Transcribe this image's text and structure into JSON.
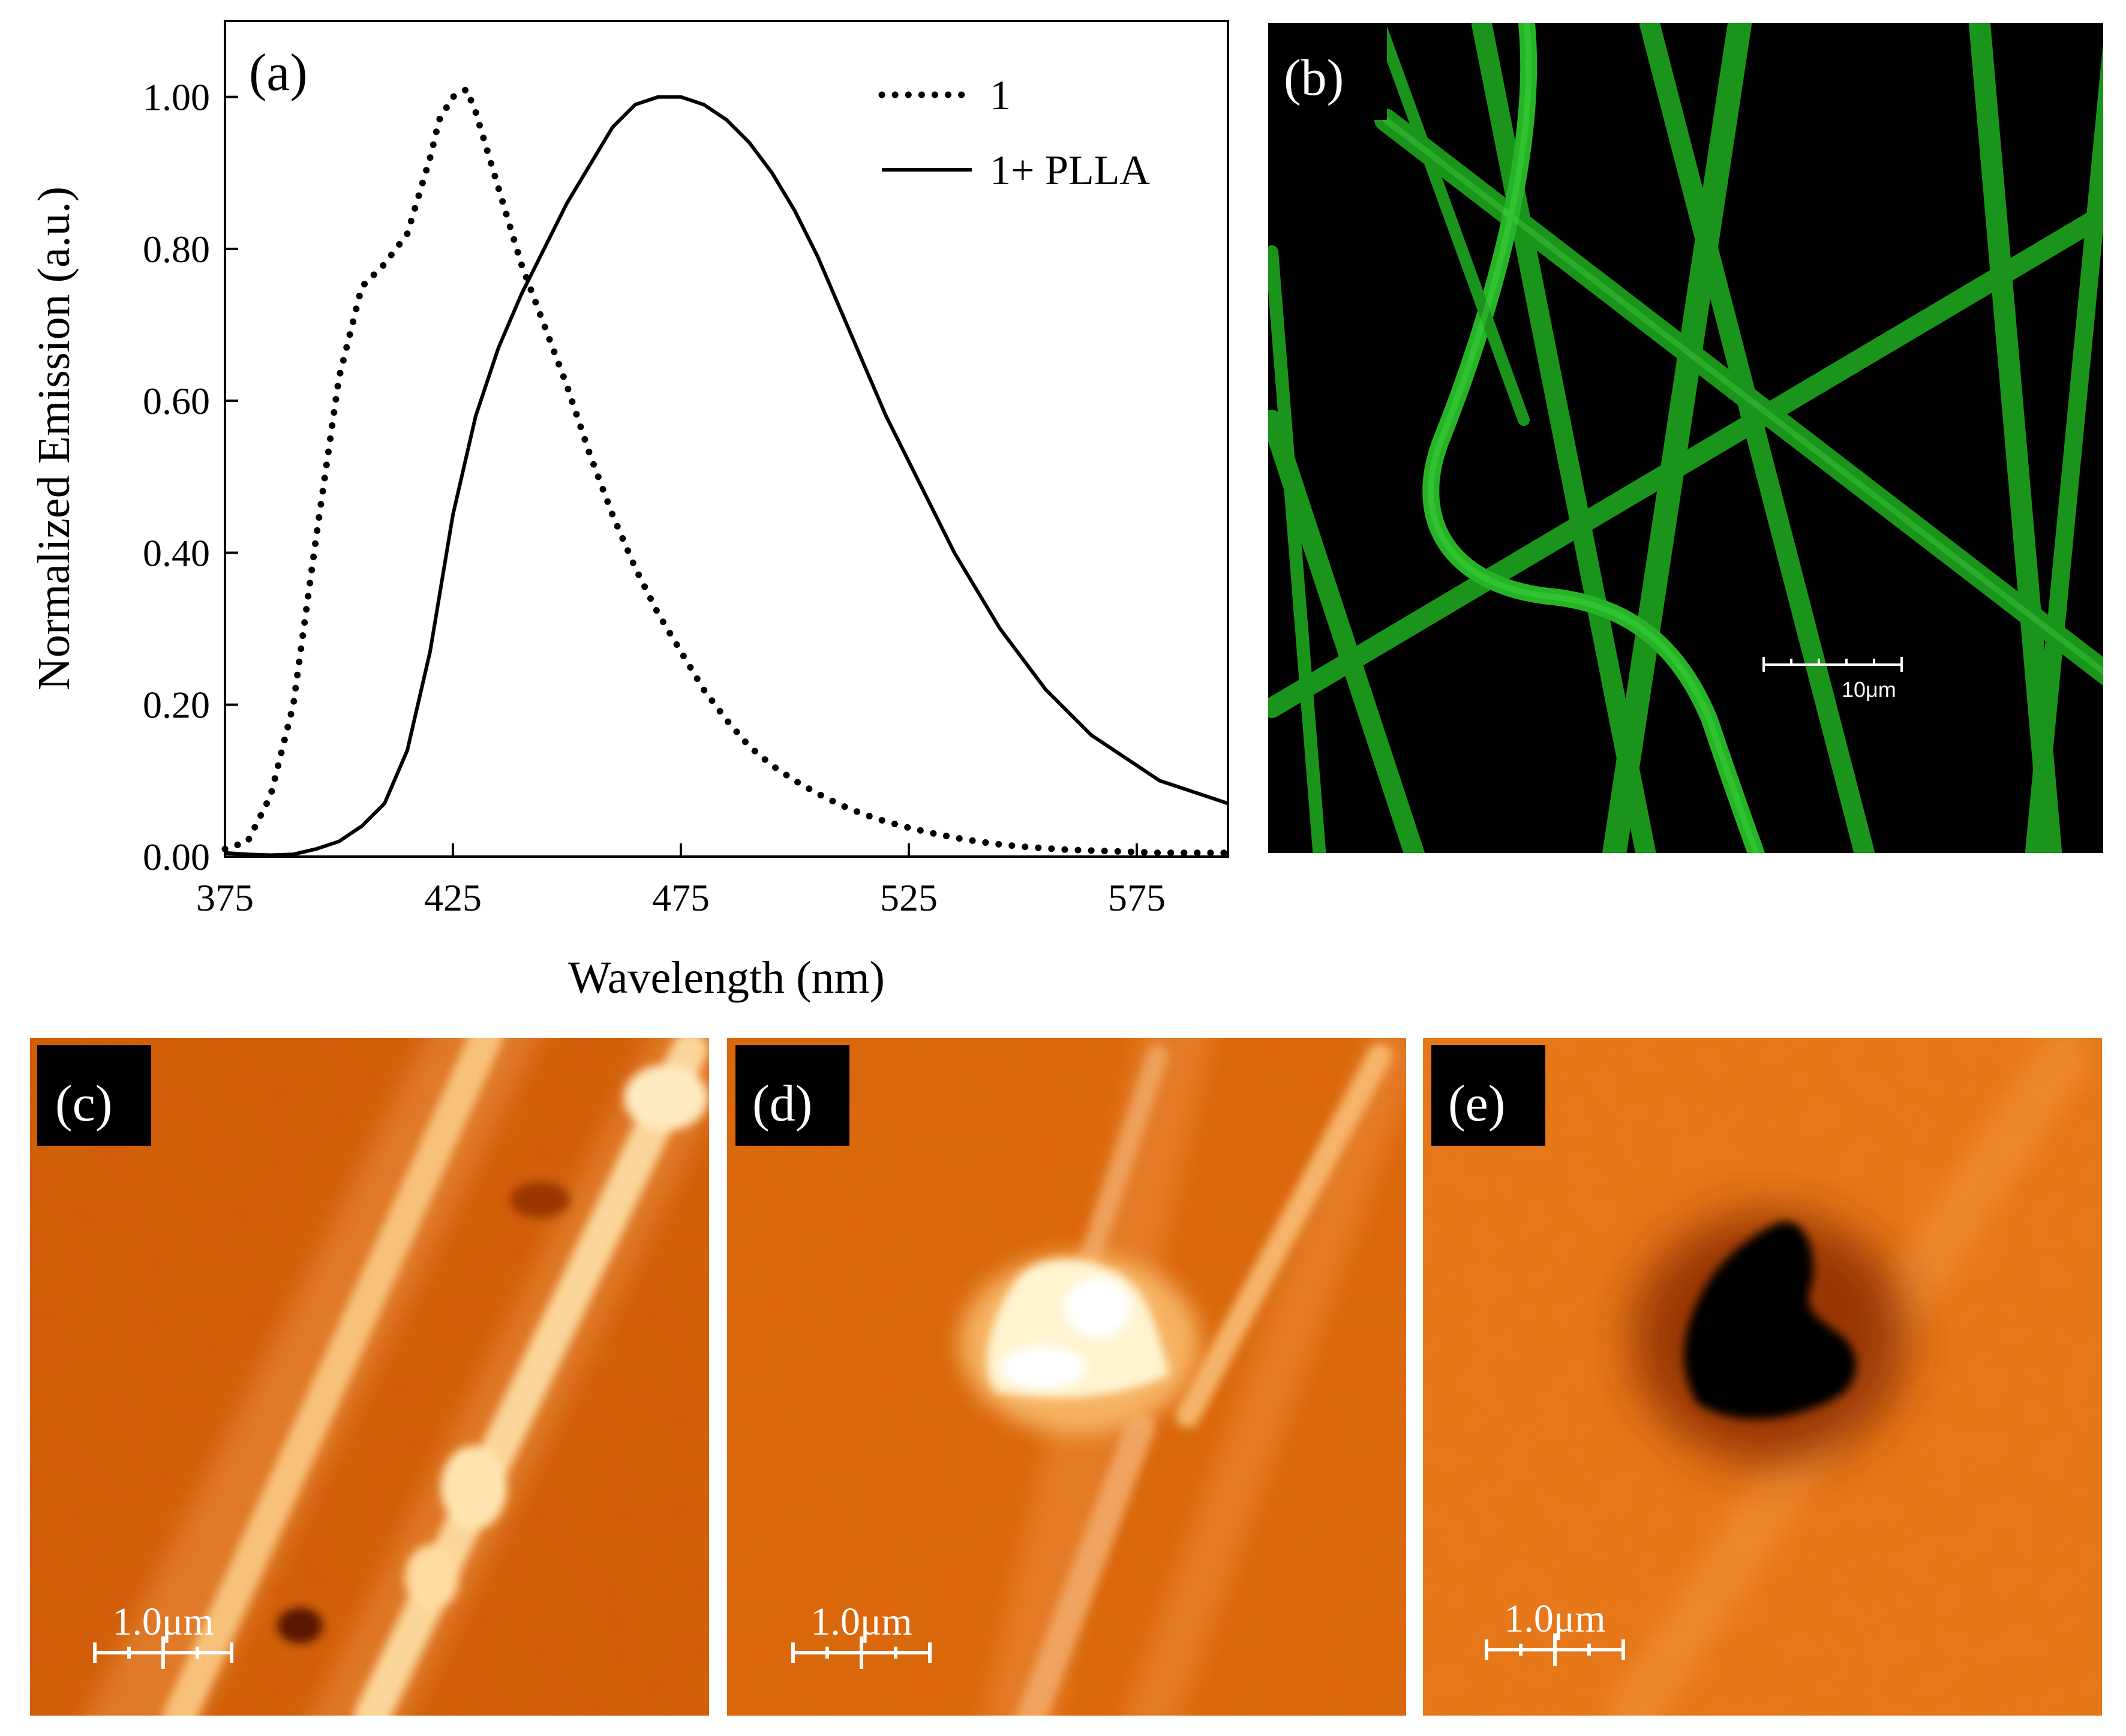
{
  "chart_data": {
    "type": "line",
    "panel_label": "(a)",
    "xlabel": "Wavelength (nm)",
    "ylabel": "Normalized Emission (a.u.)",
    "xlim": [
      375,
      595
    ],
    "ylim": [
      0,
      1.1
    ],
    "x_ticks": [
      "375",
      "425",
      "475",
      "525",
      "575"
    ],
    "x_tick_values": [
      375,
      425,
      475,
      525,
      575
    ],
    "y_ticks": [
      "0.00",
      "0.20",
      "0.40",
      "0.60",
      "0.80",
      "1.00"
    ],
    "y_tick_values": [
      0,
      0.2,
      0.4,
      0.6,
      0.8,
      1.0
    ],
    "grid": false,
    "legend_position": "top-right",
    "series": [
      {
        "name": "1",
        "style": "dotted",
        "color": "#000000",
        "x": [
          375,
          380,
          385,
          390,
          395,
          400,
          405,
          410,
          415,
          420,
          422,
          425,
          428,
          430,
          435,
          440,
          445,
          450,
          455,
          460,
          465,
          470,
          475,
          480,
          485,
          490,
          495,
          500,
          505,
          510,
          515,
          520,
          525,
          530,
          535,
          540,
          545,
          550,
          555,
          560,
          565,
          570,
          575,
          580,
          585,
          590,
          595
        ],
        "y": [
          0.01,
          0.02,
          0.08,
          0.2,
          0.42,
          0.63,
          0.75,
          0.78,
          0.82,
          0.92,
          0.97,
          1.0,
          1.01,
          0.98,
          0.88,
          0.78,
          0.7,
          0.62,
          0.53,
          0.45,
          0.38,
          0.32,
          0.27,
          0.22,
          0.18,
          0.145,
          0.12,
          0.1,
          0.083,
          0.068,
          0.056,
          0.046,
          0.038,
          0.031,
          0.025,
          0.02,
          0.016,
          0.013,
          0.011,
          0.009,
          0.008,
          0.007,
          0.006,
          0.005,
          0.005,
          0.005,
          0.005
        ]
      },
      {
        "name": "1+ PLLA",
        "style": "solid",
        "color": "#000000",
        "x": [
          375,
          380,
          385,
          390,
          395,
          400,
          405,
          410,
          415,
          420,
          425,
          430,
          435,
          440,
          445,
          450,
          455,
          460,
          465,
          470,
          475,
          480,
          485,
          490,
          495,
          500,
          505,
          510,
          515,
          520,
          525,
          530,
          535,
          540,
          545,
          550,
          555,
          560,
          565,
          570,
          575,
          580,
          585,
          590,
          595
        ],
        "y": [
          0.005,
          0.003,
          0.002,
          0.003,
          0.01,
          0.02,
          0.04,
          0.07,
          0.14,
          0.27,
          0.45,
          0.58,
          0.67,
          0.74,
          0.8,
          0.86,
          0.91,
          0.96,
          0.99,
          1.0,
          1.0,
          0.99,
          0.97,
          0.94,
          0.9,
          0.85,
          0.79,
          0.72,
          0.65,
          0.58,
          0.52,
          0.46,
          0.4,
          0.35,
          0.3,
          0.26,
          0.22,
          0.19,
          0.16,
          0.14,
          0.12,
          0.1,
          0.09,
          0.08,
          0.07
        ]
      }
    ]
  },
  "micrographs": {
    "b": {
      "label": "(b)",
      "scale_bar": "10μm",
      "background": "#000000",
      "fiber_color": "#22b422"
    },
    "c": {
      "label": "(c)",
      "scale_bar": "1.0μm",
      "background": "#d9600e",
      "feature": "two bright parallel fibers"
    },
    "d": {
      "label": "(d)",
      "scale_bar": "1.0μm",
      "background": "#e0670f",
      "feature": "bright spot on fiber"
    },
    "e": {
      "label": "(e)",
      "scale_bar": "1.0μm",
      "background": "#ec7a1c",
      "feature": "dark pit"
    }
  }
}
